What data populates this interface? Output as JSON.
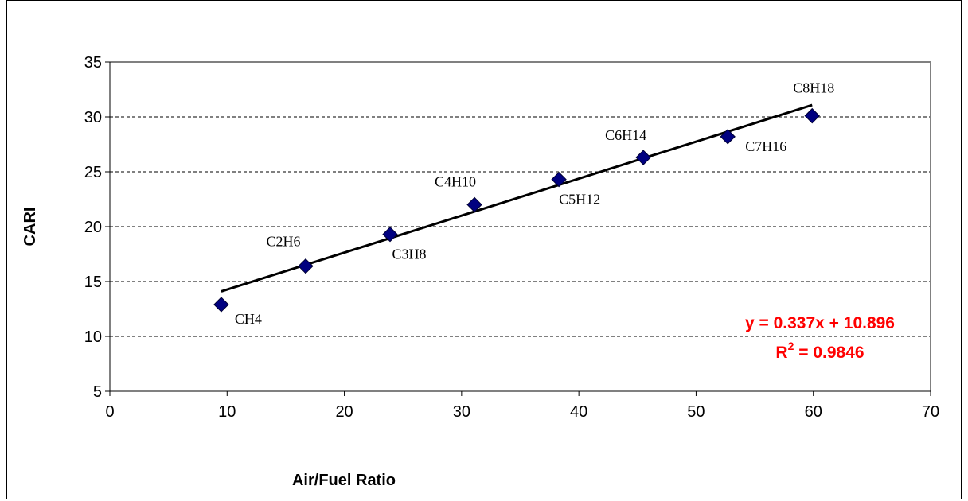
{
  "chart_data": {
    "type": "scatter",
    "xlabel": "Air/Fuel Ratio",
    "ylabel": "CARI",
    "xlim": [
      0,
      70
    ],
    "ylim": [
      5,
      35
    ],
    "xticks": [
      "0",
      "10",
      "20",
      "30",
      "40",
      "50",
      "60",
      "70"
    ],
    "yticks": [
      "5",
      "10",
      "15",
      "20",
      "25",
      "30",
      "35"
    ],
    "grid": "horizontal-dashed",
    "points": [
      {
        "label": "CH4",
        "x": 9.5,
        "y": 12.9
      },
      {
        "label": "C2H6",
        "x": 16.7,
        "y": 16.4
      },
      {
        "label": "C3H8",
        "x": 23.9,
        "y": 19.3
      },
      {
        "label": "C4H10",
        "x": 31.1,
        "y": 22.0
      },
      {
        "label": "C5H12",
        "x": 38.3,
        "y": 24.3
      },
      {
        "label": "C6H14",
        "x": 45.5,
        "y": 26.3
      },
      {
        "label": "C7H16",
        "x": 52.7,
        "y": 28.2
      },
      {
        "label": "C8H18",
        "x": 59.9,
        "y": 30.1
      }
    ],
    "marker_color": "#000080",
    "trendline": {
      "type": "linear",
      "slope": 0.337,
      "intercept": 10.896,
      "x_from": 9.5,
      "x_to": 59.9,
      "color": "#000000"
    },
    "equation_text": "y = 0.337x + 10.896",
    "r2_prefix": "R",
    "r2_superscript": "2",
    "r2_value": " = 0.9846",
    "equation_color": "#ff0000"
  }
}
